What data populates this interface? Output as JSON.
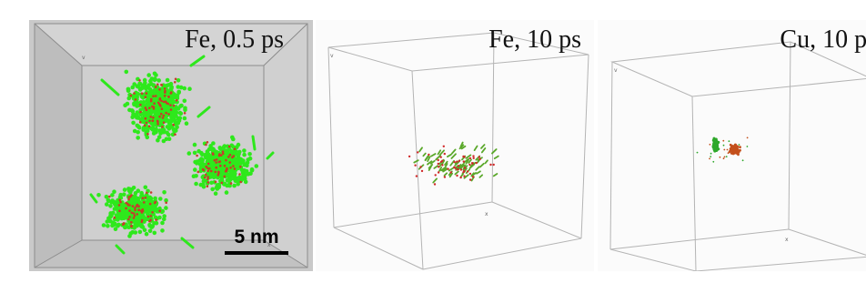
{
  "panels": [
    {
      "label": "Fe, 0.5 ps",
      "element": "Fe",
      "time_ps": 0.5,
      "colors": {
        "atoms": "#2ee81c",
        "defects": "#c83a2a",
        "background": "#c9c9c9",
        "box_edges": "#909090"
      }
    },
    {
      "label": "Fe, 10 ps",
      "element": "Fe",
      "time_ps": 10,
      "colors": {
        "atoms": "#5aa82a",
        "defects": "#d02828",
        "background": "#fbfbfb",
        "box_edges": "#b0b0b0"
      }
    },
    {
      "label": "Cu, 10 ps",
      "element": "Cu",
      "time_ps": 10,
      "colors": {
        "atoms": "#2ea82a",
        "defects": "#c4501c",
        "background": "#fbfbfb",
        "box_edges": "#b0b0b0"
      }
    }
  ],
  "scale_bar": {
    "label": "5 nm"
  }
}
